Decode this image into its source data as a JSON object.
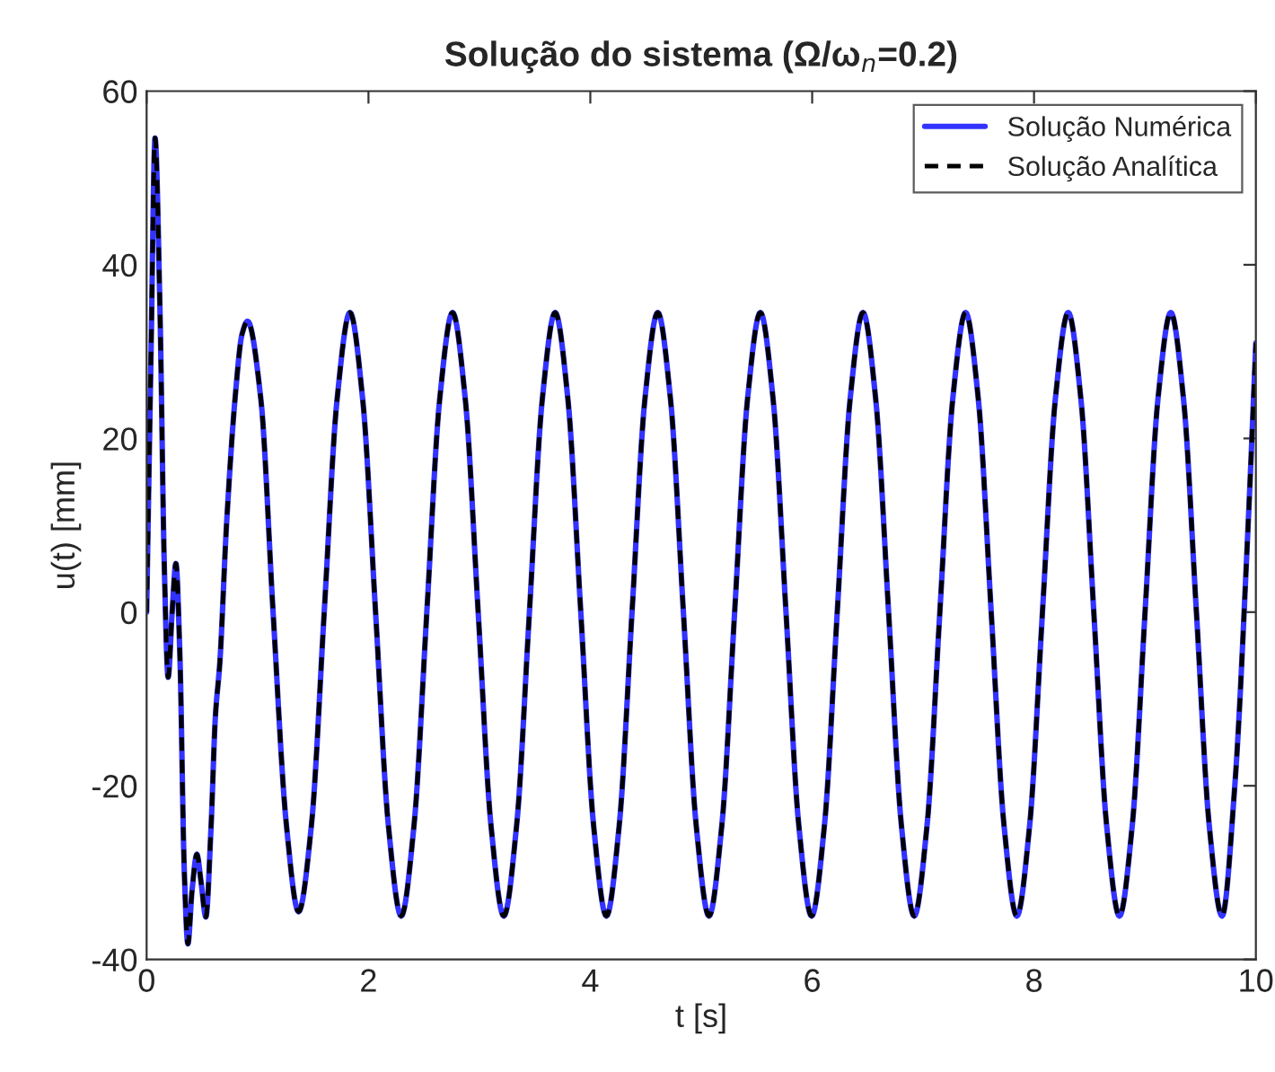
{
  "chart_data": {
    "type": "line",
    "title": "Solução do sistema (Ω/ω$_{n}$=0.2)",
    "xlabel": "t [s]",
    "ylabel": "u(t) [mm]",
    "x": [
      0,
      0.04,
      0.076,
      0.12,
      0.16,
      0.194,
      0.23,
      0.264,
      0.3,
      0.34,
      0.372,
      0.41,
      0.453,
      0.49,
      0.534,
      0.58,
      0.62,
      0.66,
      0.72,
      0.8,
      0.86,
      0.91,
      1.03,
      1.14,
      1.26,
      1.37,
      1.486,
      1.601,
      1.717,
      1.833,
      1.948,
      2.064,
      2.179,
      2.295,
      2.411,
      2.526,
      2.642,
      2.758,
      2.873,
      2.989,
      3.104,
      3.22,
      3.336,
      3.451,
      3.567,
      3.683,
      3.798,
      3.914,
      4.029,
      4.145,
      4.261,
      4.376,
      4.492,
      4.608,
      4.723,
      4.839,
      4.954,
      5.07,
      5.186,
      5.301,
      5.417,
      5.533,
      5.648,
      5.764,
      5.879,
      5.995,
      6.111,
      6.226,
      6.342,
      6.458,
      6.573,
      6.689,
      6.804,
      6.92,
      7.036,
      7.151,
      7.267,
      7.383,
      7.498,
      7.614,
      7.729,
      7.845,
      7.961,
      8.076,
      8.192,
      8.308,
      8.423,
      8.539,
      8.654,
      8.77,
      8.886,
      9.001,
      9.117,
      9.233,
      9.348,
      9.464,
      9.579,
      9.695,
      9.81,
      9.93,
      10
    ],
    "series": [
      {
        "name": "Solução Numérica",
        "color": "#3333ff",
        "line_style": "solid",
        "values": [
          0,
          30,
          54.6,
          35,
          5,
          -7.5,
          0,
          5.6,
          -5,
          -30,
          -38.2,
          -32,
          -27.9,
          -31,
          -35.1,
          -25,
          -12,
          -5.8,
          10,
          25,
          32,
          33.5,
          24.5,
          0,
          -24.5,
          -34.5,
          -24.5,
          0,
          24.5,
          34.5,
          24.5,
          0,
          -24.5,
          -35,
          -24.5,
          0,
          24.5,
          34.5,
          24.5,
          0,
          -24.5,
          -35,
          -24.5,
          0,
          24.5,
          34.5,
          24.5,
          0,
          -24.5,
          -35,
          -24.5,
          0,
          24.5,
          34.5,
          24.5,
          0,
          -24.5,
          -35,
          -24.5,
          0,
          24.5,
          34.5,
          24.5,
          0,
          -24.5,
          -35,
          -24.5,
          0,
          24.5,
          34.5,
          24.5,
          0,
          -24.5,
          -35,
          -24.5,
          0,
          24.5,
          34.5,
          24.5,
          0,
          -24.5,
          -35,
          -24.5,
          0,
          24.5,
          34.5,
          24.5,
          0,
          -24.5,
          -35,
          -24.5,
          0,
          24.5,
          34.5,
          24.5,
          0,
          -24.5,
          -35,
          -20,
          10,
          31
        ]
      },
      {
        "name": "Solução Analítica",
        "color": "#000000",
        "line_style": "dashed",
        "values": [
          0,
          30,
          54.6,
          35,
          5,
          -7.5,
          0,
          5.6,
          -5,
          -30,
          -38.2,
          -32,
          -27.9,
          -31,
          -35.1,
          -25,
          -12,
          -5.8,
          10,
          25,
          32,
          33.5,
          24.5,
          0,
          -24.5,
          -34.5,
          -24.5,
          0,
          24.5,
          34.5,
          24.5,
          0,
          -24.5,
          -35,
          -24.5,
          0,
          24.5,
          34.5,
          24.5,
          0,
          -24.5,
          -35,
          -24.5,
          0,
          24.5,
          34.5,
          24.5,
          0,
          -24.5,
          -35,
          -24.5,
          0,
          24.5,
          34.5,
          24.5,
          0,
          -24.5,
          -35,
          -24.5,
          0,
          24.5,
          34.5,
          24.5,
          0,
          -24.5,
          -35,
          -24.5,
          0,
          24.5,
          34.5,
          24.5,
          0,
          -24.5,
          -35,
          -24.5,
          0,
          24.5,
          34.5,
          24.5,
          0,
          -24.5,
          -35,
          -24.5,
          0,
          24.5,
          34.5,
          24.5,
          0,
          -24.5,
          -35,
          -24.5,
          0,
          24.5,
          34.5,
          24.5,
          0,
          -24.5,
          -35,
          -20,
          10,
          31
        ]
      }
    ],
    "xlim": [
      0,
      10
    ],
    "xticks": [
      0,
      2,
      4,
      6,
      8,
      10
    ],
    "ylim": [
      -40,
      60
    ],
    "yticks": [
      -40,
      -20,
      0,
      20,
      40,
      60
    ],
    "legend": "top right",
    "grid": false,
    "marker": "none"
  }
}
